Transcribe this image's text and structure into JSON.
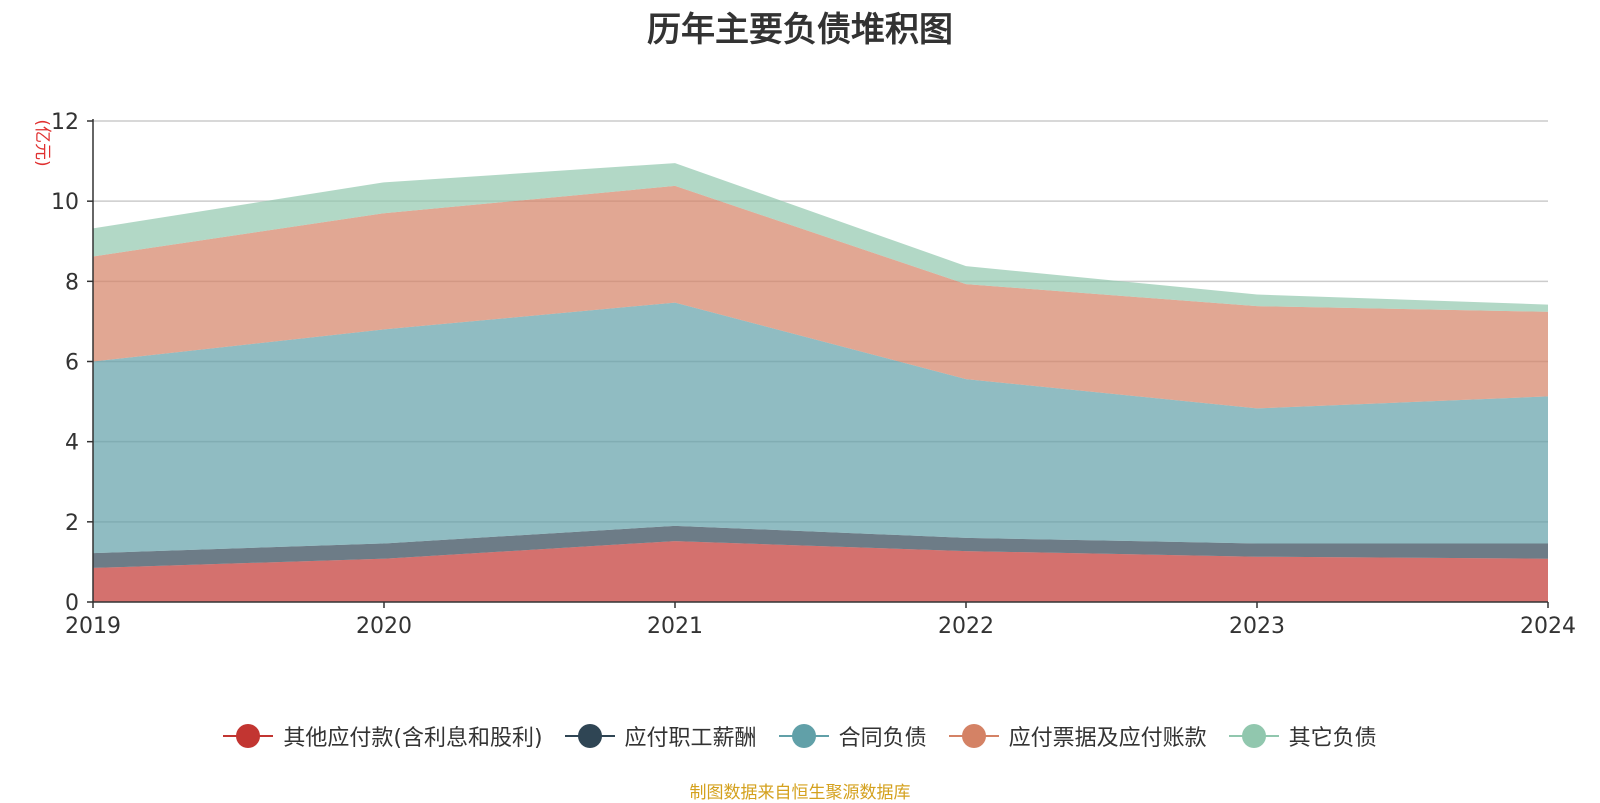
{
  "chart_data": {
    "type": "area",
    "stacked": true,
    "title": "历年主要负债堆积图",
    "ylabel": "(亿元)",
    "x": [
      "2019",
      "2020",
      "2021",
      "2022",
      "2023",
      "2024"
    ],
    "ylim": [
      0,
      12
    ],
    "yticks": [
      0,
      2,
      4,
      6,
      8,
      10,
      12
    ],
    "grid": true,
    "legend_position": "bottom",
    "series": [
      {
        "name": "其他应付款(含利息和股利)",
        "color": "#c23531",
        "values": [
          0.85,
          1.08,
          1.52,
          1.27,
          1.13,
          1.08
        ]
      },
      {
        "name": "应付职工薪酬",
        "color": "#2f4554",
        "values": [
          0.37,
          0.38,
          0.38,
          0.33,
          0.33,
          0.38
        ]
      },
      {
        "name": "合同负债",
        "color": "#61a0a8",
        "values": [
          4.78,
          5.34,
          5.57,
          3.96,
          3.37,
          3.67
        ]
      },
      {
        "name": "应付票据及应付账款",
        "color": "#d48265",
        "values": [
          2.62,
          2.9,
          2.91,
          2.37,
          2.55,
          2.11
        ]
      },
      {
        "name": "其它负债",
        "color": "#91c7ae",
        "values": [
          0.7,
          0.77,
          0.57,
          0.45,
          0.29,
          0.18
        ]
      }
    ]
  },
  "source_note": "制图数据来自恒生聚源数据库"
}
